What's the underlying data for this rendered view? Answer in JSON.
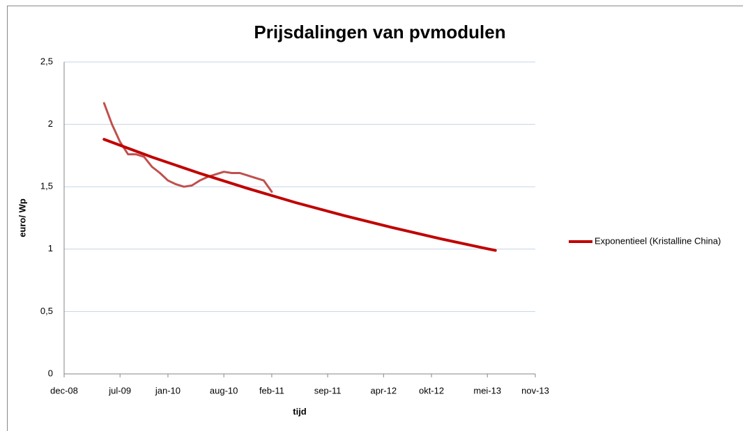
{
  "chart_data": {
    "type": "line",
    "title": "Prijsdalingen van pvmodulen",
    "x_label": "tijd",
    "y_label": "euro/ Wp",
    "xlim": [
      "2008-12",
      "2013-11"
    ],
    "xticks": [
      {
        "value": "2008-12",
        "label": "dec-08"
      },
      {
        "value": "2009-07",
        "label": "jul-09"
      },
      {
        "value": "2010-01",
        "label": "jan-10"
      },
      {
        "value": "2010-08",
        "label": "aug-10"
      },
      {
        "value": "2011-02",
        "label": "feb-11"
      },
      {
        "value": "2011-09",
        "label": "sep-11"
      },
      {
        "value": "2012-04",
        "label": "apr-12"
      },
      {
        "value": "2012-10",
        "label": "okt-12"
      },
      {
        "value": "2013-05",
        "label": "mei-13"
      },
      {
        "value": "2013-11",
        "label": "nov-13"
      }
    ],
    "ylim": [
      0,
      2.5
    ],
    "yticks": [
      0,
      {
        "value": 0.5,
        "label": "0,5"
      },
      1,
      {
        "value": 1.5,
        "label": "1,5"
      },
      2,
      {
        "value": 2.5,
        "label": "2,5"
      }
    ],
    "grid": true,
    "legend": "right",
    "series": [
      {
        "color": "#c0504d",
        "width": 3,
        "x": [
          "2009-05",
          "2009-06",
          "2009-07",
          "2009-08",
          "2009-09",
          "2009-10",
          "2009-11",
          "2009-12",
          "2010-01",
          "2010-02",
          "2010-03",
          "2010-04",
          "2010-05",
          "2010-06",
          "2010-07",
          "2010-08",
          "2010-09",
          "2010-10",
          "2010-11",
          "2010-12",
          "2011-01",
          "2011-02"
        ],
        "values": [
          2.17,
          2.0,
          1.86,
          1.76,
          1.76,
          1.74,
          1.66,
          1.61,
          1.55,
          1.52,
          1.5,
          1.51,
          1.55,
          1.58,
          1.6,
          1.62,
          1.61,
          1.61,
          1.59,
          1.57,
          1.55,
          1.46
        ]
      },
      {
        "name": "Exponentieel (Kristalline China)",
        "color": "#c00000",
        "width": 4,
        "x": [
          "2009-05",
          "2009-11",
          "2010-05",
          "2010-11",
          "2011-05",
          "2011-11",
          "2012-05",
          "2012-11",
          "2013-05",
          "2013-06"
        ],
        "values": [
          1.88,
          1.738,
          1.607,
          1.486,
          1.373,
          1.27,
          1.174,
          1.085,
          1.003,
          0.99
        ]
      }
    ]
  }
}
